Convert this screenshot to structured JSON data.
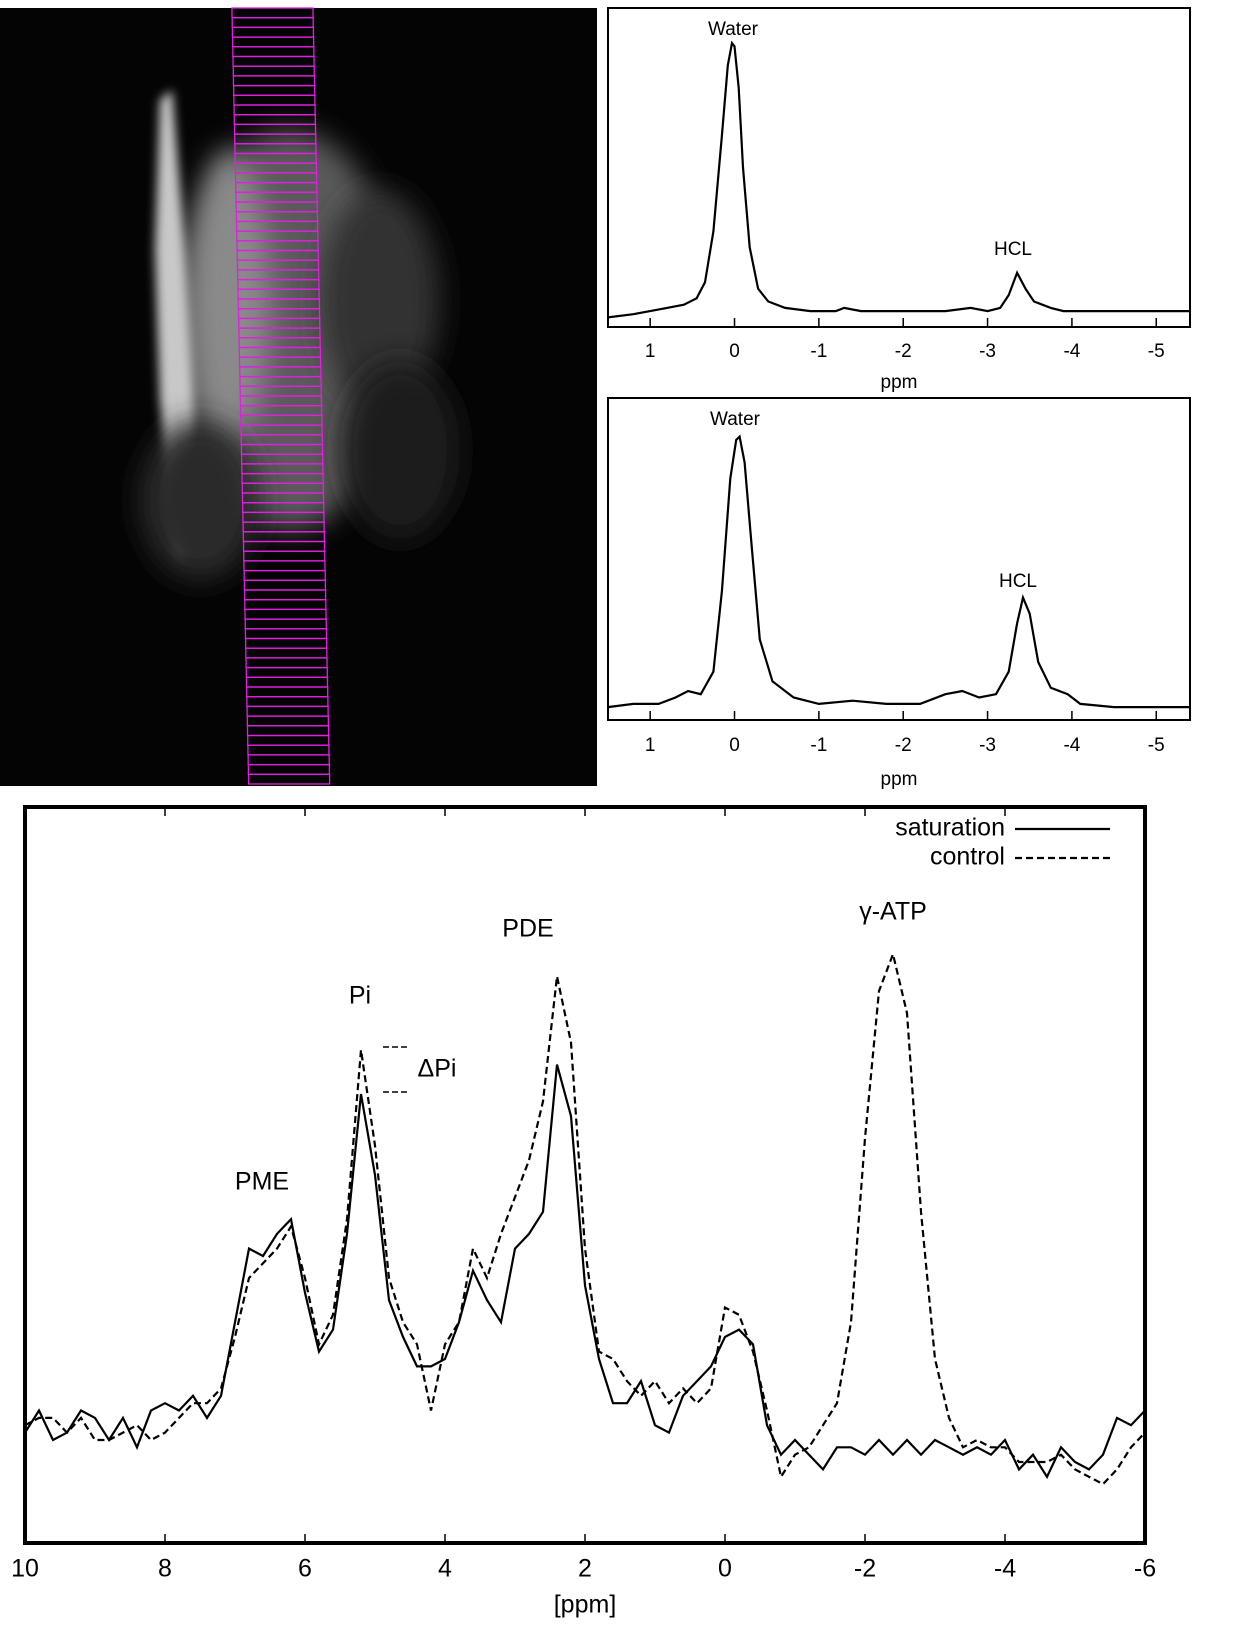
{
  "chart_data": [
    {
      "type": "line",
      "x_label": "ppm",
      "annotations": [
        "Water",
        "HCL"
      ],
      "xlim": [
        1.5,
        -5.4
      ],
      "ylim": [
        0,
        100
      ],
      "xticks": [
        1,
        0,
        -1,
        -2,
        -3,
        -4,
        -5
      ],
      "color": "#000000",
      "x": [
        1.5,
        1.2,
        1.0,
        0.8,
        0.6,
        0.45,
        0.35,
        0.25,
        0.15,
        0.08,
        0.03,
        0.0,
        -0.05,
        -0.1,
        -0.18,
        -0.28,
        -0.4,
        -0.6,
        -0.9,
        -1.2,
        -1.3,
        -1.5,
        -2,
        -2.5,
        -2.8,
        -3.0,
        -3.15,
        -3.25,
        -3.35,
        -3.45,
        -3.55,
        -3.65,
        -3.75,
        -3.9,
        -4.2,
        -5,
        -5.4
      ],
      "values": [
        3,
        4,
        5,
        6,
        7,
        9,
        14,
        30,
        60,
        82,
        89,
        88,
        75,
        50,
        25,
        12,
        8,
        6,
        5,
        5,
        6,
        5,
        5,
        5,
        6,
        5,
        6,
        10,
        17,
        12,
        8,
        7,
        6,
        5,
        5,
        5,
        5
      ]
    },
    {
      "type": "line",
      "x_label": "ppm",
      "annotations": [
        "Water",
        "HCL"
      ],
      "xlim": [
        1.5,
        -5.4
      ],
      "ylim": [
        0,
        100
      ],
      "xticks": [
        1,
        0,
        -1,
        -2,
        -3,
        -4,
        -5
      ],
      "color": "#000000",
      "x": [
        1.5,
        1.2,
        0.9,
        0.7,
        0.55,
        0.4,
        0.25,
        0.15,
        0.05,
        -0.02,
        -0.06,
        -0.12,
        -0.2,
        -0.3,
        -0.45,
        -0.7,
        -1.0,
        -1.4,
        -1.8,
        -2.2,
        -2.5,
        -2.7,
        -2.9,
        -3.1,
        -3.25,
        -3.35,
        -3.42,
        -3.5,
        -3.6,
        -3.75,
        -3.95,
        -4.1,
        -4.5,
        -5,
        -5.4
      ],
      "values": [
        4,
        5,
        5,
        7,
        9,
        8,
        15,
        40,
        75,
        87,
        88,
        80,
        55,
        25,
        12,
        7,
        5,
        6,
        5,
        5,
        8,
        9,
        7,
        8,
        15,
        30,
        38,
        33,
        18,
        10,
        8,
        5,
        4,
        4,
        4
      ]
    },
    {
      "type": "line",
      "x_label": "[ppm]",
      "annotations": [
        "PME",
        "Pi",
        "ΔPi",
        "PDE",
        "γ-ATP"
      ],
      "xlim": [
        10,
        -6
      ],
      "ylim": [
        0,
        100
      ],
      "xticks": [
        10,
        8,
        6,
        4,
        2,
        0,
        -2,
        -4,
        -6
      ],
      "legend": "upper right",
      "x": [
        10,
        9.8,
        9.6,
        9.4,
        9.2,
        9,
        8.8,
        8.6,
        8.4,
        8.2,
        8,
        7.8,
        7.6,
        7.4,
        7.2,
        7,
        6.8,
        6.6,
        6.4,
        6.2,
        6,
        5.8,
        5.6,
        5.4,
        5.2,
        5,
        4.8,
        4.6,
        4.4,
        4.2,
        4,
        3.8,
        3.6,
        3.4,
        3.2,
        3,
        2.8,
        2.6,
        2.4,
        2.2,
        2,
        1.8,
        1.6,
        1.4,
        1.2,
        1,
        0.8,
        0.6,
        0.4,
        0.2,
        0,
        -0.2,
        -0.4,
        -0.6,
        -0.8,
        -1,
        -1.2,
        -1.4,
        -1.6,
        -1.8,
        -2,
        -2.2,
        -2.4,
        -2.6,
        -2.8,
        -3,
        -3.2,
        -3.4,
        -3.6,
        -3.8,
        -4,
        -4.2,
        -4.4,
        -4.6,
        -4.8,
        -5,
        -5.2,
        -5.4,
        -5.6,
        -5.8,
        -6
      ],
      "series": [
        {
          "name": "saturation",
          "color": "#000000",
          "dash": "solid",
          "values": [
            15,
            18,
            14,
            15,
            18,
            17,
            14,
            17,
            13,
            18,
            19,
            18,
            20,
            17,
            20,
            30,
            40,
            39,
            42,
            44,
            34,
            26,
            29,
            42,
            61,
            50,
            33,
            28,
            24,
            24,
            25,
            30,
            37,
            33,
            30,
            40,
            42,
            45,
            65,
            58,
            35,
            25,
            19,
            19,
            22,
            16,
            15,
            20,
            22,
            24,
            28,
            29,
            27,
            16,
            12,
            14,
            12,
            10,
            13,
            13,
            12,
            14,
            12,
            14,
            12,
            14,
            13,
            12,
            13,
            12,
            14,
            10,
            12,
            9,
            13,
            11,
            10,
            12,
            17,
            16,
            18
          ]
        },
        {
          "name": "control",
          "color": "#000000",
          "dash": "dashed",
          "values": [
            16,
            17,
            17,
            15,
            17,
            14,
            14,
            15,
            16,
            14,
            15,
            17,
            19,
            19,
            21,
            28,
            36,
            38,
            40,
            43,
            36,
            27,
            31,
            44,
            67,
            54,
            36,
            30,
            27,
            18,
            27,
            30,
            40,
            36,
            42,
            47,
            52,
            60,
            77,
            68,
            40,
            26,
            25,
            22,
            20,
            22,
            19,
            21,
            19,
            21,
            32,
            31,
            26,
            18,
            9,
            12,
            13,
            16,
            19,
            30,
            55,
            75,
            80,
            72,
            45,
            25,
            17,
            13,
            14,
            13,
            13,
            11,
            11,
            11,
            12,
            10,
            9,
            8,
            10,
            13,
            15
          ]
        }
      ]
    }
  ]
}
